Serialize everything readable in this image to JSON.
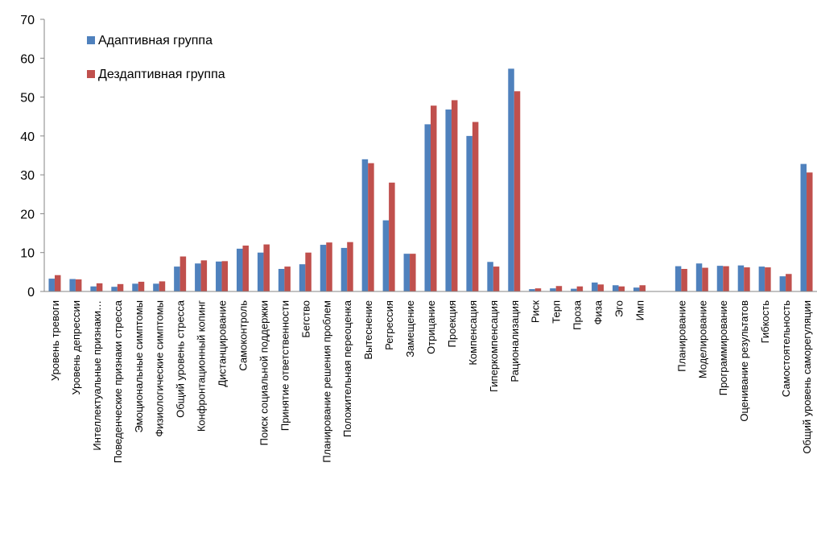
{
  "chart_data": {
    "type": "bar",
    "title": "",
    "xlabel": "",
    "ylabel": "",
    "ylim": [
      0,
      70
    ],
    "yticks": [
      0,
      10,
      20,
      30,
      40,
      50,
      60,
      70
    ],
    "grid": false,
    "legend_position": "top-left",
    "categories": [
      "Уровень  тревоги",
      "Уровень  депрессии",
      "Интеллектуальные признаки…",
      "Поведенческие признаки стресса",
      "Эмоциональные симптомы",
      "Физиологические симптомы",
      "Общий уровень стресса",
      "Конфронтационный копинг",
      "Дистанцирование",
      "Самоконтроль",
      "Поиск социальной поддержки",
      "Принятие ответственности",
      "Бегство",
      "Планирование решения проблем",
      "Положительная переоценка",
      "Вытеснение",
      "Регрессия",
      "Замещение",
      "Отрицание",
      "Проекция",
      "Компенсация",
      "Гиперкомпенсация",
      "Рационализация",
      "Риск",
      "Терп",
      "Проза",
      "Физа",
      "Эго",
      "Имп",
      "",
      "Планирование",
      "Моделирование",
      "Программирование",
      "Оценивание результатов",
      "Гибкость",
      "Самостоятельность",
      "Общий уровень саморегуляции"
    ],
    "series": [
      {
        "name": "Адаптивная группа",
        "color": "#4F81BD",
        "values": [
          3.3,
          3.2,
          1.3,
          1.2,
          2.0,
          2.0,
          6.4,
          7.2,
          7.7,
          11.0,
          10.0,
          5.8,
          7.0,
          12.0,
          11.2,
          34.0,
          18.3,
          9.7,
          43.0,
          46.8,
          40.0,
          7.6,
          57.3,
          0.6,
          0.8,
          0.7,
          2.3,
          1.6,
          1.0,
          0,
          6.5,
          7.2,
          6.6,
          6.7,
          6.4,
          3.9,
          32.8
        ]
      },
      {
        "name": "Дездаптивная группа",
        "color": "#C0504D",
        "values": [
          4.2,
          3.1,
          2.1,
          1.9,
          2.5,
          2.6,
          9.0,
          8.0,
          7.8,
          11.8,
          12.1,
          6.4,
          10.0,
          12.6,
          12.7,
          33.0,
          28.0,
          9.7,
          47.8,
          49.2,
          43.6,
          6.4,
          51.5,
          0.8,
          1.4,
          1.3,
          1.8,
          1.3,
          1.6,
          0,
          5.8,
          6.1,
          6.5,
          6.2,
          6.2,
          4.5,
          30.6
        ]
      }
    ]
  }
}
